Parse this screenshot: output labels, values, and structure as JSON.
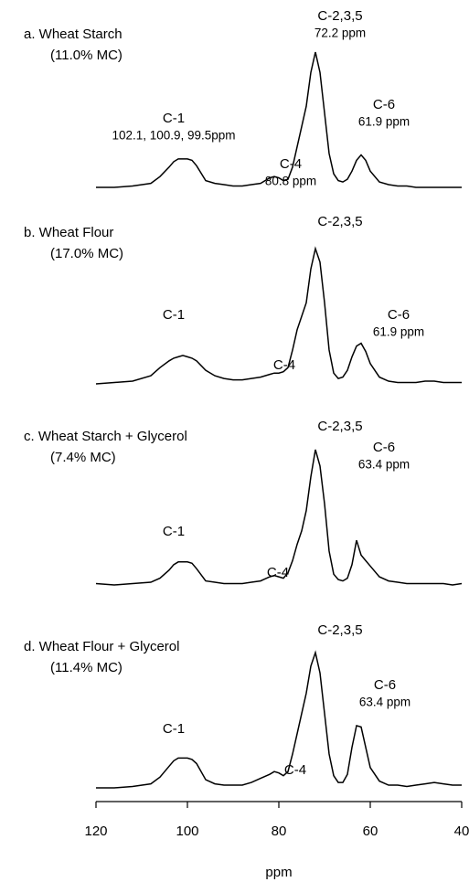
{
  "chart_data": {
    "type": "line",
    "xlabel": "ppm",
    "xlim": [
      120,
      40
    ],
    "xticks": [
      120,
      100,
      80,
      60,
      40
    ],
    "ylim": [
      0,
      100
    ],
    "color": "#000000",
    "x": [
      120,
      116,
      112,
      108,
      106,
      104,
      103,
      102,
      101,
      100,
      99,
      98,
      96,
      94,
      92,
      90,
      88,
      86,
      84,
      82,
      81,
      80,
      79,
      78,
      77,
      76,
      75,
      74,
      73,
      72,
      71,
      70,
      69,
      68,
      67,
      66,
      65,
      64,
      63,
      62,
      61,
      60,
      58,
      56,
      54,
      52,
      50,
      48,
      46,
      44,
      42,
      40
    ],
    "series": [
      {
        "name": "a. Wheat Starch",
        "note": "(11.0% MC)",
        "peaks": [
          [
            "C-1",
            "102.1, 100.9, 99.5ppm"
          ],
          [
            "C-4",
            "80.8 ppm"
          ],
          [
            "C-2,3,5",
            "72.2 ppm"
          ],
          [
            "C-6",
            "61.9 ppm"
          ]
        ],
        "values": [
          0,
          0,
          1,
          3,
          8,
          15,
          19,
          21,
          21,
          21,
          20,
          16,
          5,
          3,
          2,
          1,
          1,
          2,
          3,
          7,
          8,
          7,
          5,
          6,
          15,
          30,
          45,
          60,
          85,
          100,
          85,
          55,
          25,
          10,
          5,
          4,
          6,
          12,
          20,
          24,
          20,
          12,
          4,
          2,
          1,
          1,
          0,
          0,
          0,
          0,
          0,
          0
        ]
      },
      {
        "name": "b. Wheat Flour",
        "note": "(17.0% MC)",
        "peaks": [
          [
            "C-1"
          ],
          [
            "C-4"
          ],
          [
            "C-2,3,5"
          ],
          [
            "C-6",
            "61.9 ppm"
          ]
        ],
        "values": [
          0,
          1,
          2,
          6,
          12,
          17,
          19,
          20,
          21,
          20,
          19,
          17,
          10,
          6,
          4,
          3,
          3,
          4,
          5,
          7,
          8,
          8,
          9,
          12,
          25,
          40,
          50,
          60,
          85,
          100,
          90,
          60,
          25,
          8,
          4,
          5,
          10,
          20,
          28,
          30,
          24,
          15,
          5,
          2,
          1,
          1,
          1,
          2,
          2,
          1,
          1,
          1
        ]
      },
      {
        "name": "c. Wheat Starch + Glycerol",
        "note": "(7.4% MC)",
        "peaks": [
          [
            "C-1"
          ],
          [
            "C-4"
          ],
          [
            "C-2,3,5"
          ],
          [
            "C-6",
            "63.4 ppm"
          ]
        ],
        "values": [
          1,
          0,
          1,
          2,
          5,
          11,
          15,
          17,
          17,
          17,
          16,
          12,
          3,
          2,
          1,
          1,
          1,
          2,
          3,
          6,
          7,
          6,
          5,
          9,
          18,
          30,
          40,
          55,
          80,
          100,
          88,
          60,
          25,
          8,
          4,
          3,
          5,
          15,
          33,
          22,
          18,
          14,
          6,
          3,
          2,
          1,
          1,
          1,
          1,
          1,
          0,
          1
        ]
      },
      {
        "name": "d. Wheat Flour + Glycerol",
        "note": "(11.4% MC)",
        "peaks": [
          [
            "C-1"
          ],
          [
            "C-4"
          ],
          [
            "C-2,3,5"
          ],
          [
            "C-6",
            "63.4 ppm"
          ]
        ],
        "values": [
          0,
          0,
          1,
          3,
          8,
          16,
          20,
          22,
          22,
          22,
          21,
          18,
          6,
          3,
          2,
          2,
          2,
          4,
          7,
          10,
          12,
          11,
          9,
          12,
          25,
          40,
          55,
          70,
          90,
          100,
          85,
          55,
          25,
          9,
          4,
          4,
          10,
          30,
          46,
          45,
          30,
          15,
          5,
          2,
          2,
          1,
          2,
          3,
          4,
          3,
          2,
          2
        ]
      }
    ]
  }
}
